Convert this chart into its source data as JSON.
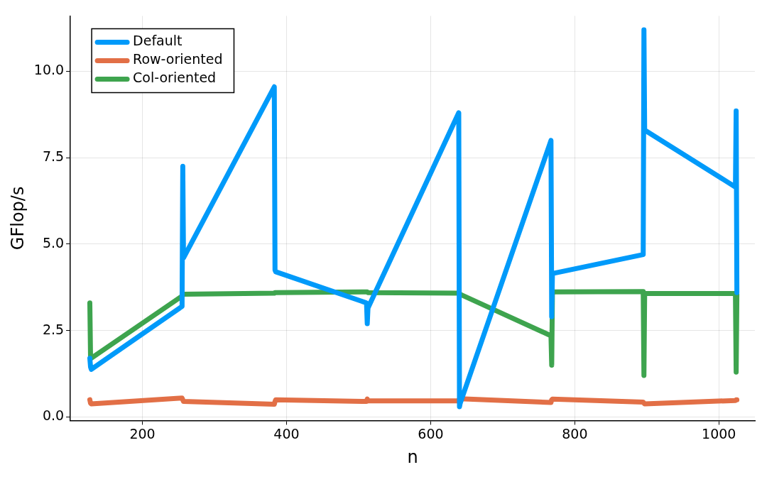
{
  "chart_data": {
    "type": "line",
    "xlabel": "n",
    "ylabel": "GFlop/s",
    "x": [
      127,
      128,
      129,
      255,
      256,
      257,
      383,
      384,
      385,
      511,
      512,
      513,
      639,
      640,
      641,
      767,
      768,
      769,
      895,
      896,
      897,
      1023,
      1024,
      1025
    ],
    "series": [
      {
        "name": "Default",
        "color": "#009afa",
        "values": [
          1.7,
          1.45,
          1.38,
          3.2,
          7.25,
          4.6,
          9.55,
          4.25,
          4.2,
          3.3,
          2.7,
          3.15,
          8.8,
          0.3,
          0.4,
          8.0,
          2.9,
          4.15,
          4.7,
          11.2,
          8.3,
          6.65,
          8.85,
          3.6
        ]
      },
      {
        "name": "Row-oriented",
        "color": "#e26f46",
        "values": [
          0.5,
          0.4,
          0.38,
          0.55,
          0.5,
          0.45,
          0.37,
          0.45,
          0.5,
          0.45,
          0.52,
          0.47,
          0.47,
          0.52,
          0.53,
          0.42,
          0.5,
          0.52,
          0.43,
          0.4,
          0.38,
          0.48,
          0.5,
          0.5
        ]
      },
      {
        "name": "Col-oriented",
        "color": "#3ea44e",
        "values": [
          3.3,
          1.7,
          1.7,
          3.5,
          3.55,
          3.55,
          3.58,
          3.6,
          3.6,
          3.62,
          3.62,
          3.6,
          3.58,
          3.58,
          3.55,
          2.35,
          1.5,
          3.62,
          3.63,
          1.2,
          3.57,
          3.57,
          1.3,
          3.55
        ]
      }
    ],
    "xlim": [
      100,
      1050
    ],
    "xticks": [
      200,
      400,
      600,
      800,
      1000
    ],
    "ylim": [
      -0.1,
      11.6
    ],
    "yticks": [
      {
        "value": 0,
        "label": "0.0"
      },
      {
        "value": 2.5,
        "label": "2.5"
      },
      {
        "value": 5,
        "label": "5.0"
      },
      {
        "value": 7.5,
        "label": "7.5"
      },
      {
        "value": 10,
        "label": "10.0"
      }
    ],
    "grid": true,
    "legend": "top left",
    "marker": "none",
    "line_style": "solid"
  }
}
